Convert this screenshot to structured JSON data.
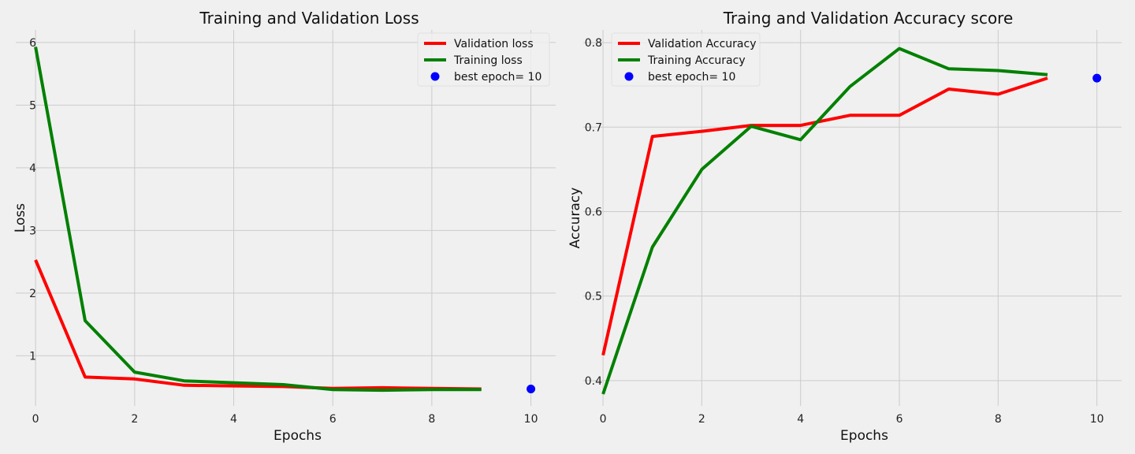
{
  "chart_data": [
    {
      "type": "line",
      "title": "Training and Validation Loss",
      "xlabel": "Epochs",
      "ylabel": "Loss",
      "x": [
        0,
        1,
        2,
        3,
        4,
        5,
        6,
        7,
        8,
        9
      ],
      "xlim": [
        -0.4,
        10.5
      ],
      "ylim": [
        0.2,
        6.2
      ],
      "xticks": [
        0,
        2,
        4,
        6,
        8,
        10
      ],
      "yticks": [
        1,
        2,
        3,
        4,
        5,
        6
      ],
      "grid": true,
      "legend_position": "top-right",
      "series": [
        {
          "name": "Validation loss",
          "color": "#ff0000",
          "values": [
            2.53,
            0.66,
            0.63,
            0.53,
            0.52,
            0.51,
            0.48,
            0.49,
            0.48,
            0.47
          ]
        },
        {
          "name": "Training loss",
          "color": "#008000",
          "values": [
            5.93,
            1.56,
            0.74,
            0.6,
            0.57,
            0.54,
            0.46,
            0.45,
            0.46,
            0.46
          ]
        }
      ],
      "best_point": {
        "name": "best epoch= 10",
        "color": "#0000ff",
        "x": 10,
        "y": 0.47
      }
    },
    {
      "type": "line",
      "title": "Traing and Validation  Accuracy score",
      "xlabel": "Epochs",
      "ylabel": "Accuracy",
      "x": [
        0,
        1,
        2,
        3,
        4,
        5,
        6,
        7,
        8,
        9
      ],
      "xlim": [
        -0.4,
        10.5
      ],
      "ylim": [
        0.37,
        0.815
      ],
      "xticks": [
        0,
        2,
        4,
        6,
        8,
        10
      ],
      "yticks": [
        0.4,
        0.5,
        0.6,
        0.7,
        0.8
      ],
      "grid": true,
      "legend_position": "top-left",
      "series": [
        {
          "name": "Validation Accuracy",
          "color": "#ff0000",
          "values": [
            0.43,
            0.689,
            0.695,
            0.702,
            0.702,
            0.714,
            0.714,
            0.745,
            0.739,
            0.758
          ]
        },
        {
          "name": "Training Accuracy",
          "color": "#008000",
          "values": [
            0.384,
            0.558,
            0.65,
            0.701,
            0.685,
            0.748,
            0.793,
            0.769,
            0.767,
            0.762
          ]
        }
      ],
      "best_point": {
        "name": "best epoch= 10",
        "color": "#0000ff",
        "x": 10,
        "y": 0.758
      }
    }
  ]
}
